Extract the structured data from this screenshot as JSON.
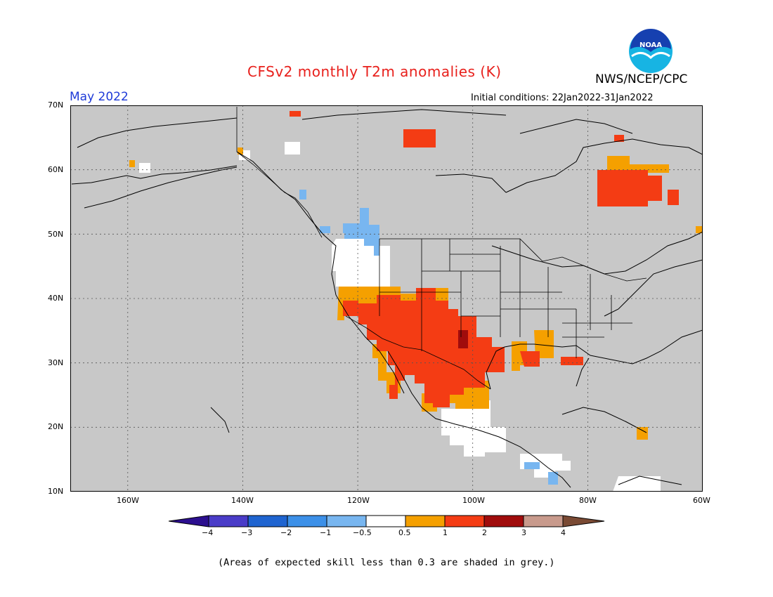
{
  "title": "CFSv2 monthly T2m anomalies (K)",
  "agency": "NWS/NCEP/CPC",
  "logo_text": "NOAA",
  "month": "May 2022",
  "initial_conditions": "Initial conditions: 22Jan2022-31Jan2022",
  "footnote": "(Areas of expected skill less than 0.3 are shaded in grey.)",
  "lat_labels": [
    "70N",
    "60N",
    "50N",
    "40N",
    "30N",
    "20N",
    "10N"
  ],
  "lon_labels": [
    "160W",
    "140W",
    "120W",
    "100W",
    "80W",
    "60W"
  ],
  "colorbar": {
    "labels": [
      "−4",
      "−3",
      "−2",
      "−1",
      "−0.5",
      "0.5",
      "1",
      "2",
      "3",
      "4"
    ],
    "colors": [
      "#2c0f8f",
      "#4a3cc8",
      "#1f64d0",
      "#3c90e8",
      "#78b6f0",
      "#ffffff",
      "#f5a000",
      "#f43c14",
      "#a00c0c",
      "#c89a8c",
      "#7a4a34"
    ]
  },
  "colors": {
    "no_skill_grey": "#c8c8c8",
    "land_white": "#ffffff",
    "title_red": "#e8201c",
    "month_blue": "#1e3ad8"
  }
}
